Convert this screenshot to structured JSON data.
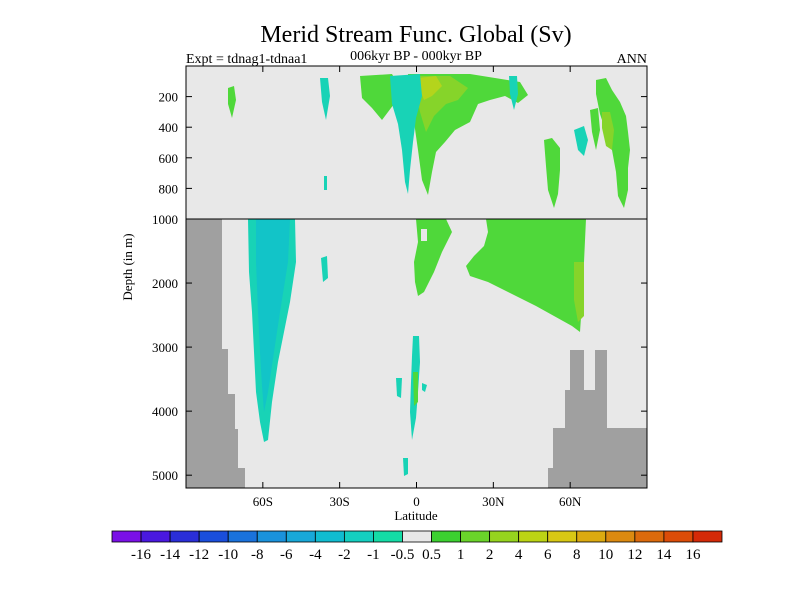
{
  "chart_data": {
    "type": "heatmap",
    "title": "Merid Stream Func. Global (Sv)",
    "subtitle_left": "Expt = tdnag1-tdnaa1",
    "subtitle_center": "006kyr BP - 000kyr BP",
    "subtitle_right": "ANN",
    "xlabel": "Latitude",
    "ylabel": "Depth (in m)",
    "xlim": [
      -90,
      90
    ],
    "upper_panel_ylim": [
      1000,
      0
    ],
    "lower_panel_ylim": [
      5200,
      1000
    ],
    "x_ticks": [
      {
        "value": -60,
        "label": "60S"
      },
      {
        "value": -30,
        "label": "30S"
      },
      {
        "value": 0,
        "label": "0"
      },
      {
        "value": 30,
        "label": "30N"
      },
      {
        "value": 60,
        "label": "60N"
      }
    ],
    "upper_y_ticks": [
      {
        "value": 200,
        "label": "200"
      },
      {
        "value": 400,
        "label": "400"
      },
      {
        "value": 600,
        "label": "600"
      },
      {
        "value": 800,
        "label": "800"
      }
    ],
    "lower_y_ticks": [
      {
        "value": 1000,
        "label": "1000"
      },
      {
        "value": 2000,
        "label": "2000"
      },
      {
        "value": 3000,
        "label": "3000"
      },
      {
        "value": 4000,
        "label": "4000"
      },
      {
        "value": 5000,
        "label": "5000"
      }
    ],
    "colorbar": {
      "labels": [
        "-16",
        "-14",
        "-12",
        "-10",
        "-8",
        "-6",
        "-4",
        "-2",
        "-1",
        "-0.5",
        "0.5",
        "1",
        "2",
        "4",
        "6",
        "8",
        "10",
        "12",
        "14",
        "16"
      ],
      "colors": [
        "#7a10e6",
        "#4a18e0",
        "#2a2ed8",
        "#1a4edc",
        "#1a72dc",
        "#1a92dc",
        "#18a8d8",
        "#10bcd0",
        "#14cfc0",
        "#14dca6",
        "#e8e8e8",
        "#3cd030",
        "#6ad42a",
        "#96d41e",
        "#bcd414",
        "#d8c814",
        "#dcaa10",
        "#dc8a10",
        "#dc6a0c",
        "#dc4c08",
        "#d42a08"
      ]
    },
    "fill_colors": {
      "background": "#e8e8e8",
      "land": "#a0a0a0",
      "neg_0_5_to_1": "#18d3b6",
      "neg_1_to_2": "#12c4c8",
      "pos_0_5_to_1": "#4fd83a",
      "pos_1_to_2": "#86d42a",
      "pos_2_to_4": "#b4d41c"
    }
  }
}
